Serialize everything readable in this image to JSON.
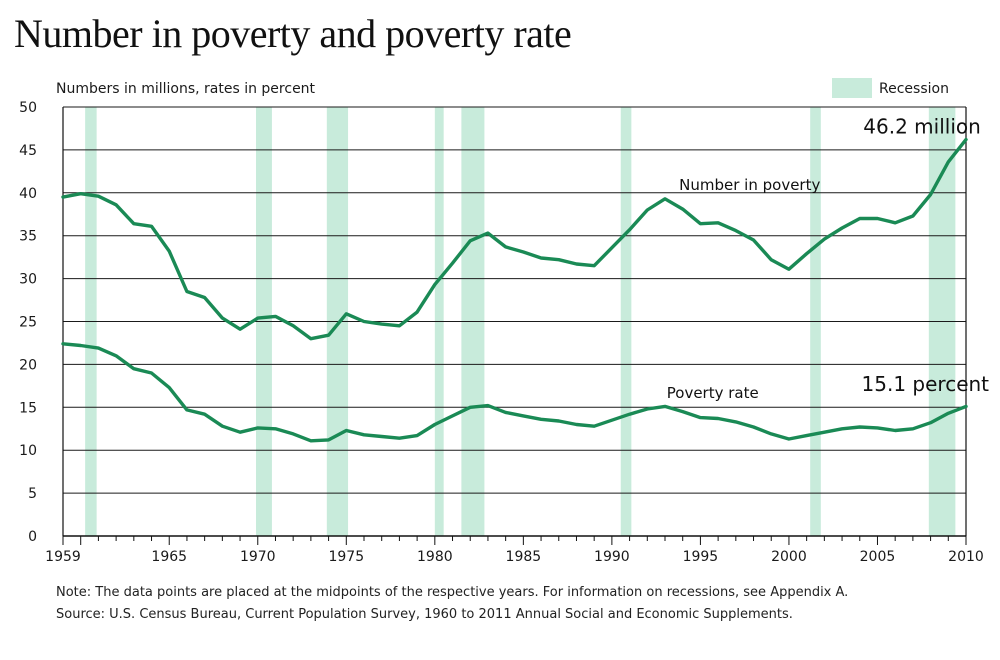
{
  "title": "Number in poverty and poverty rate",
  "notes": {
    "note": "Note: The data points are placed at the midpoints of the respective years. For information on recessions, see Appendix A.",
    "source": "Source: U.S. Census Bureau, Current Population Survey, 1960 to 2011 Annual Social and Economic Supplements."
  },
  "colors": {
    "line": "#1a8a55",
    "recession": "#c8ebdb",
    "grid": "#1a1a1a"
  },
  "chart_data": {
    "type": "line",
    "subtitle": "Numbers in millions, rates in percent",
    "legend": {
      "label": "Recession",
      "position": "top-right"
    },
    "xlim": [
      1959,
      2010
    ],
    "ylim": [
      0,
      50
    ],
    "grid": true,
    "x_ticks": [
      1959,
      1965,
      1970,
      1975,
      1980,
      1985,
      1990,
      1995,
      2000,
      2005,
      2010
    ],
    "y_ticks": [
      0,
      5,
      10,
      15,
      20,
      25,
      30,
      35,
      40,
      45,
      50
    ],
    "recessions": [
      [
        1960.25,
        1960.9
      ],
      [
        1969.9,
        1970.8
      ],
      [
        1973.9,
        1975.1
      ],
      [
        1980.0,
        1980.5
      ],
      [
        1981.5,
        1982.8
      ],
      [
        1990.5,
        1991.1
      ],
      [
        2001.2,
        2001.8
      ],
      [
        2007.9,
        2009.4
      ]
    ],
    "x": [
      1959,
      1960,
      1961,
      1962,
      1963,
      1964,
      1965,
      1966,
      1967,
      1968,
      1969,
      1970,
      1971,
      1972,
      1973,
      1974,
      1975,
      1976,
      1977,
      1978,
      1979,
      1980,
      1981,
      1982,
      1983,
      1984,
      1985,
      1986,
      1987,
      1988,
      1989,
      1990,
      1991,
      1992,
      1993,
      1994,
      1995,
      1996,
      1997,
      1998,
      1999,
      2000,
      2001,
      2002,
      2003,
      2004,
      2005,
      2006,
      2007,
      2008,
      2009,
      2010
    ],
    "series": [
      {
        "name": "Number in poverty",
        "values": [
          39.5,
          39.9,
          39.6,
          38.6,
          36.4,
          36.1,
          33.2,
          28.5,
          27.8,
          25.4,
          24.1,
          25.4,
          25.6,
          24.5,
          23.0,
          23.4,
          25.9,
          25.0,
          24.7,
          24.5,
          26.1,
          29.3,
          31.8,
          34.4,
          35.3,
          33.7,
          33.1,
          32.4,
          32.2,
          31.7,
          31.5,
          33.6,
          35.7,
          38.0,
          39.3,
          38.1,
          36.4,
          36.5,
          35.6,
          34.5,
          32.2,
          31.1,
          32.9,
          34.6,
          35.9,
          37.0,
          37.0,
          36.5,
          37.3,
          39.8,
          43.6,
          46.2
        ]
      },
      {
        "name": "Poverty rate",
        "values": [
          22.4,
          22.2,
          21.9,
          21.0,
          19.5,
          19.0,
          17.3,
          14.7,
          14.2,
          12.8,
          12.1,
          12.6,
          12.5,
          11.9,
          11.1,
          11.2,
          12.3,
          11.8,
          11.6,
          11.4,
          11.7,
          13.0,
          14.0,
          15.0,
          15.2,
          14.4,
          14.0,
          13.6,
          13.4,
          13.0,
          12.8,
          13.5,
          14.2,
          14.8,
          15.1,
          14.5,
          13.8,
          13.7,
          13.3,
          12.7,
          11.9,
          11.3,
          11.7,
          12.1,
          12.5,
          12.7,
          12.6,
          12.3,
          12.5,
          13.2,
          14.3,
          15.1
        ]
      }
    ],
    "annotations": [
      {
        "text": "46.2 million",
        "x": 2004.2,
        "y": 46.9
      },
      {
        "text": "Number in poverty",
        "x": 1993.8,
        "y": 40.3
      },
      {
        "text": "15.1 percent",
        "x": 2004.1,
        "y": 16.9
      },
      {
        "text": "Poverty rate",
        "x": 1993.1,
        "y": 16.1
      }
    ]
  }
}
